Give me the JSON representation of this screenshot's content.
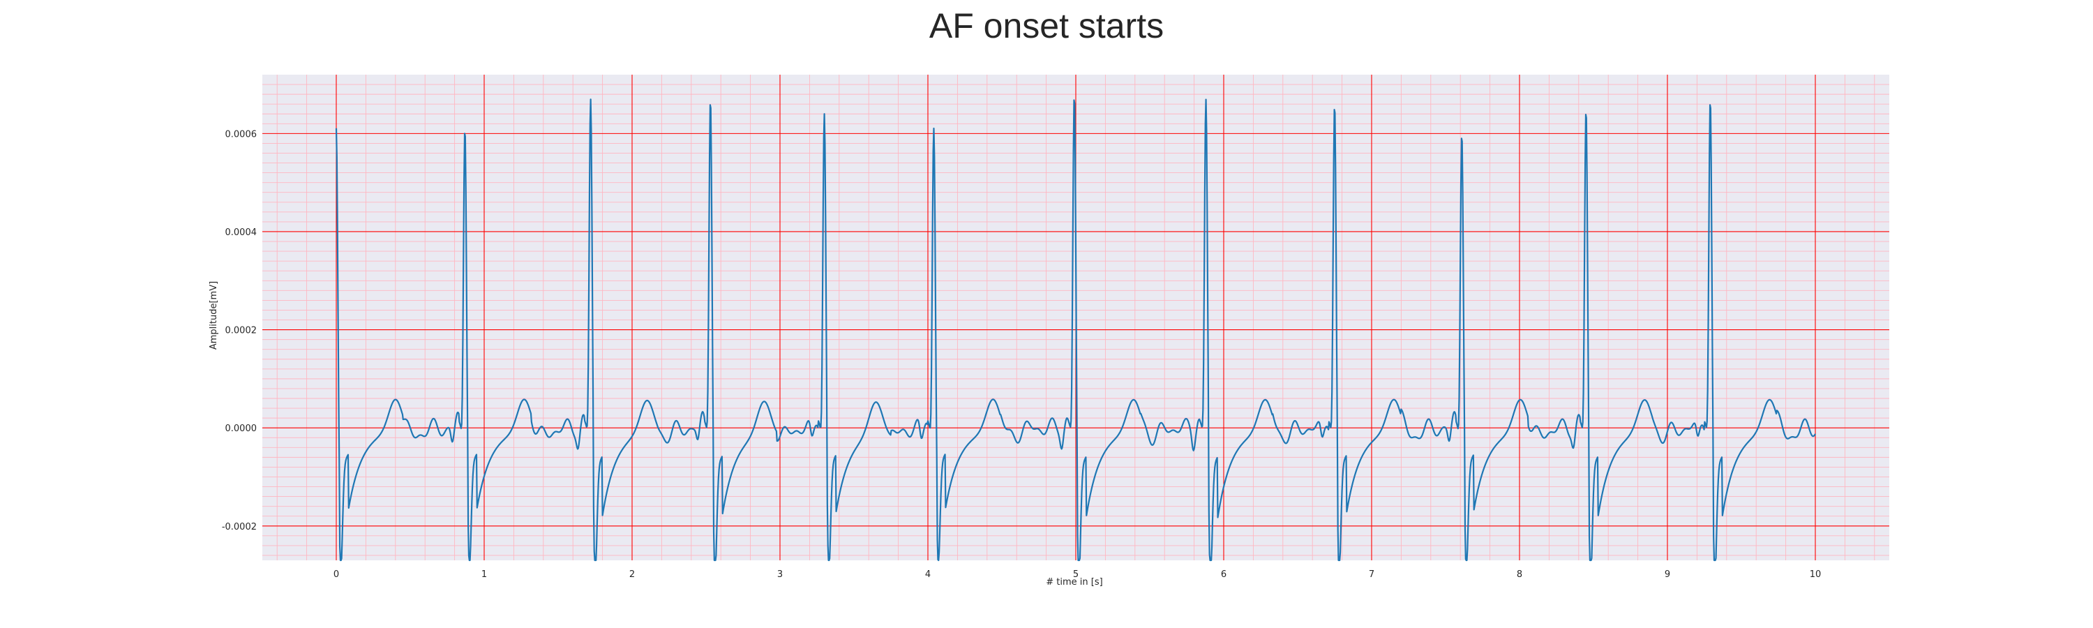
{
  "chart_data": {
    "type": "line",
    "title": "AF onset starts",
    "xlabel": "# time in [s]",
    "ylabel": "Amplitude[mV]",
    "xlim": [
      -0.5,
      10.5
    ],
    "ylim": [
      -0.00027,
      0.00072
    ],
    "x_ticks": [
      0,
      1,
      2,
      3,
      4,
      5,
      6,
      7,
      8,
      9,
      10
    ],
    "y_ticks": [
      -0.0002,
      0.0,
      0.0002,
      0.0004,
      0.0006
    ],
    "y_tick_labels": [
      "-0.0002",
      "0.0000",
      "0.0002",
      "0.0004",
      "0.0006"
    ],
    "grid": true,
    "minor_grid": true,
    "sample_rate_hz": 250,
    "series": [
      {
        "color": "#1f77b4",
        "beats": [
          {
            "t": 0.0,
            "r": 0.00062,
            "s": -0.00021
          },
          {
            "t": 0.87,
            "r": 0.00062,
            "s": -0.000205
          },
          {
            "t": 1.72,
            "r": 0.00068,
            "s": -0.00022
          },
          {
            "t": 2.53,
            "r": 0.00068,
            "s": -0.00022
          },
          {
            "t": 3.3,
            "r": 0.00065,
            "s": -0.00021
          },
          {
            "t": 4.04,
            "r": 0.00062,
            "s": -0.0002
          },
          {
            "t": 4.99,
            "r": 0.00069,
            "s": -0.000225
          },
          {
            "t": 5.88,
            "r": 0.00068,
            "s": -0.000225
          },
          {
            "t": 6.75,
            "r": 0.00067,
            "s": -0.000215
          },
          {
            "t": 7.61,
            "r": 0.00061,
            "s": -0.00021
          },
          {
            "t": 8.45,
            "r": 0.00066,
            "s": -0.000225
          },
          {
            "t": 9.29,
            "r": 0.00068,
            "s": -0.000225
          }
        ],
        "t_wave_amplitude": 6.5e-05,
        "end_time": 10.0
      }
    ]
  },
  "colors": {
    "plot_background": "#eaeaf2",
    "major_grid": "#ff0000",
    "minor_grid": "#ffb6c1",
    "line": "#1f77b4"
  }
}
